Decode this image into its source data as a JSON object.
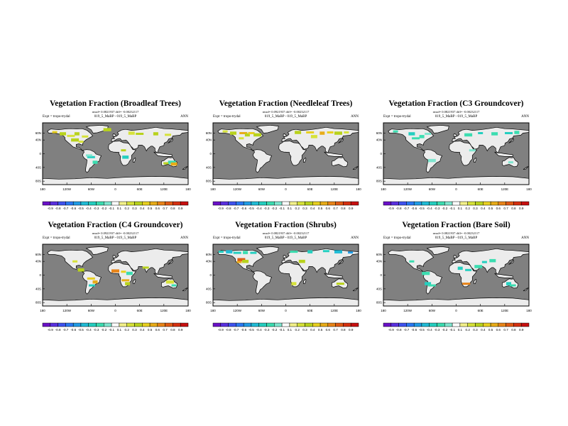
{
  "figure": {
    "background": "#ffffff",
    "ocean_color": "#808080",
    "land_color": "#ececec"
  },
  "chart_data": [
    {
      "type": "heatmap",
      "title": "Vegetation Fraction (Broadleaf Trees)",
      "subtitle": "rmsd= 0.0821937 diff= -0.00232117",
      "expt_label": "Expt = tropo-trydal",
      "run_label": "019_5_MaBP - 019_5_MaBP",
      "season": "ANN",
      "ylabels": [
        "60N",
        "40N",
        "0",
        "40S",
        "80S"
      ],
      "xlabels": [
        "180",
        "120W",
        "60W",
        "0",
        "60E",
        "120E",
        "180"
      ],
      "colorbar": [
        "-0.9",
        "-0.8",
        "-0.7",
        "-0.6",
        "-0.5",
        "-0.4",
        "-0.3",
        "-0.2",
        "-0.1",
        "0.1",
        "0.2",
        "0.3",
        "0.4",
        "0.5",
        "0.6",
        "0.7",
        "0.8",
        "0.9"
      ],
      "features": [
        {
          "lon": -150,
          "lat": 63,
          "level": 0.4
        },
        {
          "lon": -130,
          "lat": 58,
          "level": 0.3
        },
        {
          "lon": -110,
          "lat": 52,
          "level": 0.2
        },
        {
          "lon": -95,
          "lat": 58,
          "level": 0.3
        },
        {
          "lon": -75,
          "lat": 50,
          "level": 0.2
        },
        {
          "lon": -100,
          "lat": 40,
          "level": 0.3
        },
        {
          "lon": -85,
          "lat": 35,
          "level": 0.2
        },
        {
          "lon": 40,
          "lat": 60,
          "level": 0.2
        },
        {
          "lon": 60,
          "lat": 58,
          "level": 0.3
        },
        {
          "lon": 100,
          "lat": 58,
          "level": 0.3
        },
        {
          "lon": 130,
          "lat": 55,
          "level": 0.2
        },
        {
          "lon": -20,
          "lat": 70,
          "level": 0.3
        },
        {
          "lon": 20,
          "lat": 10,
          "level": 0.3
        },
        {
          "lon": 25,
          "lat": -10,
          "level": -0.3
        },
        {
          "lon": -60,
          "lat": -10,
          "level": -0.3
        },
        {
          "lon": -50,
          "lat": -25,
          "level": -0.2
        },
        {
          "lon": -65,
          "lat": -5,
          "level": -0.1
        },
        {
          "lon": 140,
          "lat": -25,
          "level": -0.2
        },
        {
          "lon": 125,
          "lat": -28,
          "level": 0.3
        },
        {
          "lon": 145,
          "lat": -30,
          "level": 0.5
        }
      ]
    },
    {
      "type": "heatmap",
      "title": "Vegetation Fraction (Needleleaf Trees)",
      "subtitle": "rmsd= 0.0921937 diff= -0.00232117",
      "expt_label": "Expt = tropo-trydal",
      "run_label": "019_5_MaBP - 019_5_MaBP",
      "season": "ANN",
      "ylabels": [
        "60N",
        "40N",
        "0",
        "40S",
        "80S"
      ],
      "xlabels": [
        "180",
        "120W",
        "60W",
        "0",
        "60E",
        "120E",
        "180"
      ],
      "colorbar": [
        "-0.9",
        "-0.8",
        "-0.7",
        "-0.6",
        "-0.5",
        "-0.4",
        "-0.3",
        "-0.2",
        "-0.1",
        "0.1",
        "0.2",
        "0.3",
        "0.4",
        "0.5",
        "0.6",
        "0.7",
        "0.8",
        "0.9"
      ],
      "features": [
        {
          "lon": -150,
          "lat": 65,
          "level": 0.2
        },
        {
          "lon": -130,
          "lat": 60,
          "level": 0.3
        },
        {
          "lon": -105,
          "lat": 60,
          "level": 0.5
        },
        {
          "lon": -95,
          "lat": 55,
          "level": 0.3
        },
        {
          "lon": -85,
          "lat": 60,
          "level": 0.4
        },
        {
          "lon": -70,
          "lat": 55,
          "level": 0.3
        },
        {
          "lon": -110,
          "lat": 45,
          "level": 0.2
        },
        {
          "lon": 30,
          "lat": 62,
          "level": 0.3
        },
        {
          "lon": 60,
          "lat": 62,
          "level": 0.4
        },
        {
          "lon": 90,
          "lat": 60,
          "level": 0.5
        },
        {
          "lon": 110,
          "lat": 62,
          "level": 0.4
        },
        {
          "lon": 130,
          "lat": 60,
          "level": 0.3
        },
        {
          "lon": 150,
          "lat": 62,
          "level": 0.2
        },
        {
          "lon": 70,
          "lat": 50,
          "level": 0.2
        }
      ]
    },
    {
      "type": "heatmap",
      "title": "Vegetation Fraction (C3 Groundcover)",
      "subtitle": "rmsd= 0.0821937 diff= -0.00232117",
      "expt_label": "Expt = tropo-trydal",
      "run_label": "019_5_MaBP - 019_5_MaBP",
      "season": "ANN",
      "ylabels": [
        "60N",
        "40N",
        "0",
        "40S",
        "80S"
      ],
      "xlabels": [
        "180",
        "120W",
        "60W",
        "0",
        "60E",
        "120E",
        "180"
      ],
      "colorbar": [
        "-0.9",
        "-0.8",
        "-0.7",
        "-0.6",
        "-0.5",
        "-0.4",
        "-0.3",
        "-0.2",
        "-0.1",
        "0.1",
        "0.2",
        "0.3",
        "0.4",
        "0.5",
        "0.6",
        "0.7",
        "0.8",
        "0.9"
      ],
      "features": [
        {
          "lon": -150,
          "lat": 65,
          "level": -0.2
        },
        {
          "lon": -110,
          "lat": 58,
          "level": -0.3
        },
        {
          "lon": -100,
          "lat": 45,
          "level": -0.2
        },
        {
          "lon": -85,
          "lat": 50,
          "level": -0.2
        },
        {
          "lon": -70,
          "lat": 58,
          "level": -0.1
        },
        {
          "lon": 30,
          "lat": 55,
          "level": -0.2
        },
        {
          "lon": 60,
          "lat": 60,
          "level": -0.3
        },
        {
          "lon": 95,
          "lat": 58,
          "level": -0.2
        },
        {
          "lon": 130,
          "lat": 60,
          "level": -0.3
        },
        {
          "lon": 150,
          "lat": 62,
          "level": -0.2
        },
        {
          "lon": 40,
          "lat": 10,
          "level": -0.1
        },
        {
          "lon": -60,
          "lat": -20,
          "level": -0.1
        },
        {
          "lon": 135,
          "lat": -25,
          "level": -0.1
        }
      ]
    },
    {
      "type": "heatmap",
      "title": "Vegetation Fraction (C4 Groundcover)",
      "subtitle": "rmsd= 0.0921937 diff= -0.00232117",
      "expt_label": "Expt = tropo-trydal",
      "run_label": "019_5_MaBP - 019_5_MaBP",
      "season": "ANN",
      "ylabels": [
        "60N",
        "40N",
        "0",
        "40S",
        "80S"
      ],
      "xlabels": [
        "180",
        "120W",
        "60W",
        "0",
        "60E",
        "120E",
        "180"
      ],
      "colorbar": [
        "-0.9",
        "-0.8",
        "-0.7",
        "-0.6",
        "-0.5",
        "-0.4",
        "-0.3",
        "-0.2",
        "-0.1",
        "0.1",
        "0.2",
        "0.3",
        "0.4",
        "0.5",
        "0.6",
        "0.7",
        "0.8",
        "0.9"
      ],
      "features": [
        {
          "lon": -100,
          "lat": 40,
          "level": 0.2
        },
        {
          "lon": -85,
          "lat": 15,
          "level": 0.3
        },
        {
          "lon": -60,
          "lat": -10,
          "level": 0.4
        },
        {
          "lon": -50,
          "lat": -20,
          "level": 0.5
        },
        {
          "lon": -58,
          "lat": -30,
          "level": -0.3
        },
        {
          "lon": 0,
          "lat": 12,
          "level": 0.6
        },
        {
          "lon": 20,
          "lat": 10,
          "level": 0.4
        },
        {
          "lon": 35,
          "lat": 5,
          "level": -0.2
        },
        {
          "lon": 25,
          "lat": -15,
          "level": 0.5
        },
        {
          "lon": 30,
          "lat": -25,
          "level": 0.3
        },
        {
          "lon": 75,
          "lat": 22,
          "level": 0.3
        },
        {
          "lon": 135,
          "lat": -20,
          "level": 0.2
        },
        {
          "lon": 145,
          "lat": -30,
          "level": -0.2
        }
      ]
    },
    {
      "type": "heatmap",
      "title": "Vegetation Fraction (Shrubs)",
      "subtitle": "rmsd= 0.0821937 diff= -0.00232117",
      "expt_label": "Expt = tropo-trydal",
      "run_label": "019_5_MaBP - 019_5_MaBP",
      "season": "ANN",
      "ylabels": [
        "60N",
        "40N",
        "0",
        "40S",
        "80S"
      ],
      "xlabels": [
        "180",
        "120W",
        "60W",
        "0",
        "60E",
        "120E",
        "180"
      ],
      "colorbar": [
        "-0.9",
        "-0.8",
        "-0.7",
        "-0.6",
        "-0.5",
        "-0.4",
        "-0.3",
        "-0.2",
        "-0.1",
        "0.1",
        "0.2",
        "0.3",
        "0.4",
        "0.5",
        "0.6",
        "0.7",
        "0.8",
        "0.9"
      ],
      "features": [
        {
          "lon": -160,
          "lat": 68,
          "level": -0.3
        },
        {
          "lon": -140,
          "lat": 68,
          "level": -0.4
        },
        {
          "lon": -120,
          "lat": 65,
          "level": -0.3
        },
        {
          "lon": -100,
          "lat": 66,
          "level": -0.2
        },
        {
          "lon": -80,
          "lat": 65,
          "level": -0.3
        },
        {
          "lon": -110,
          "lat": 45,
          "level": 0.7
        },
        {
          "lon": -115,
          "lat": 38,
          "level": 0.5
        },
        {
          "lon": -100,
          "lat": 40,
          "level": 0.3
        },
        {
          "lon": 20,
          "lat": 68,
          "level": -0.2
        },
        {
          "lon": 60,
          "lat": 68,
          "level": -0.3
        },
        {
          "lon": 100,
          "lat": 70,
          "level": -0.3
        },
        {
          "lon": 130,
          "lat": 68,
          "level": -0.4
        },
        {
          "lon": 160,
          "lat": 66,
          "level": -0.5
        },
        {
          "lon": 40,
          "lat": 40,
          "level": 0.3
        },
        {
          "lon": 135,
          "lat": -25,
          "level": 0.3
        },
        {
          "lon": 20,
          "lat": -25,
          "level": 0.2
        }
      ]
    },
    {
      "type": "heatmap",
      "title": "Vegetation Fraction (Bare Soil)",
      "subtitle": "rmsd= 0.0821937 diff= -0.00232117",
      "expt_label": "Expt = tropo-trydal",
      "run_label": "019_5_MaBP - 019_5_MaBP",
      "season": "ANN",
      "ylabels": [
        "60N",
        "40N",
        "0",
        "40S",
        "80S"
      ],
      "xlabels": [
        "180",
        "120W",
        "60W",
        "0",
        "60E",
        "120E",
        "180"
      ],
      "colorbar": [
        "-0.9",
        "-0.8",
        "-0.7",
        "-0.6",
        "-0.5",
        "-0.4",
        "-0.3",
        "-0.2",
        "-0.1",
        "0.1",
        "0.2",
        "0.3",
        "0.4",
        "0.5",
        "0.6",
        "0.7",
        "0.8",
        "0.9"
      ],
      "features": [
        {
          "lon": -110,
          "lat": 40,
          "level": -0.2
        },
        {
          "lon": -70,
          "lat": -25,
          "level": -0.3
        },
        {
          "lon": -60,
          "lat": -30,
          "level": -0.2
        },
        {
          "lon": 10,
          "lat": 20,
          "level": -0.3
        },
        {
          "lon": 30,
          "lat": 15,
          "level": -0.3
        },
        {
          "lon": 55,
          "lat": 25,
          "level": -0.2
        },
        {
          "lon": 70,
          "lat": 38,
          "level": -0.3
        },
        {
          "lon": 90,
          "lat": 42,
          "level": -0.2
        },
        {
          "lon": 25,
          "lat": -25,
          "level": 0.6
        },
        {
          "lon": 130,
          "lat": -25,
          "level": -0.3
        },
        {
          "lon": 140,
          "lat": -30,
          "level": -0.2
        },
        {
          "lon": -75,
          "lat": 5,
          "level": -0.2
        }
      ]
    }
  ]
}
